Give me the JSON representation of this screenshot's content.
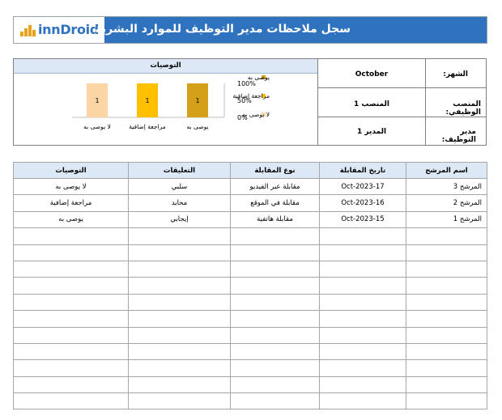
{
  "header": {
    "logo_text": "innDroid",
    "title": "سجل ملاحظات مدير التوظيف للموارد البشرية"
  },
  "info": {
    "month_label": "الشهر:",
    "month_value": "October",
    "position_label": "المنصب الوظيفي:",
    "position_value": "المنصب 1",
    "manager_label": "مدير التوظيف:",
    "manager_value": "المدير 1"
  },
  "chart_data": {
    "type": "bar",
    "title": "التوصيات",
    "categories": [
      "يوصى به",
      "مراجعة إضافية",
      "لا يوصى به"
    ],
    "series": [
      {
        "name": "يوصى به",
        "values": [
          1,
          0,
          0
        ],
        "color": "#d4a017"
      },
      {
        "name": "مراجعة إضافية",
        "values": [
          0,
          1,
          0
        ],
        "color": "#ffc000"
      },
      {
        "name": "لا يوصى به",
        "values": [
          0,
          0,
          1
        ],
        "color": "#fcd5a4"
      }
    ],
    "stacked_percent": true,
    "data_labels": [
      "1",
      "1",
      "1"
    ],
    "y_ticks": [
      "100%",
      "50%",
      "0%"
    ],
    "ylim": [
      0,
      100
    ],
    "legend": [
      "يوصى به",
      "مراجعة إضافية",
      "لا يوصى به"
    ],
    "legend_position": "right"
  },
  "table": {
    "headers": [
      "اسم المرشح",
      "تاريخ المقابلة",
      "نوع المقابلة",
      "التعليقات",
      "التوصيات"
    ],
    "rows": [
      [
        "المرشح 3",
        "17-Oct-2023",
        "مقابلة عبر الفيديو",
        "سلبي",
        "لا يوصى به"
      ],
      [
        "المرشح 2",
        "16-Oct-2023",
        "مقابلة في الموقع",
        "محايد",
        "مراجعة إضافية"
      ],
      [
        "المرشح 1",
        "15-Oct-2023",
        "مقابلة هاتفية",
        "إيجابي",
        "يوصى به"
      ],
      [
        "",
        "",
        "",
        "",
        ""
      ],
      [
        "",
        "",
        "",
        "",
        ""
      ],
      [
        "",
        "",
        "",
        "",
        ""
      ],
      [
        "",
        "",
        "",
        "",
        ""
      ],
      [
        "",
        "",
        "",
        "",
        ""
      ],
      [
        "",
        "",
        "",
        "",
        ""
      ],
      [
        "",
        "",
        "",
        "",
        ""
      ],
      [
        "",
        "",
        "",
        "",
        ""
      ],
      [
        "",
        "",
        "",
        "",
        ""
      ],
      [
        "",
        "",
        "",
        "",
        ""
      ],
      [
        "",
        "",
        "",
        "",
        ""
      ]
    ]
  }
}
